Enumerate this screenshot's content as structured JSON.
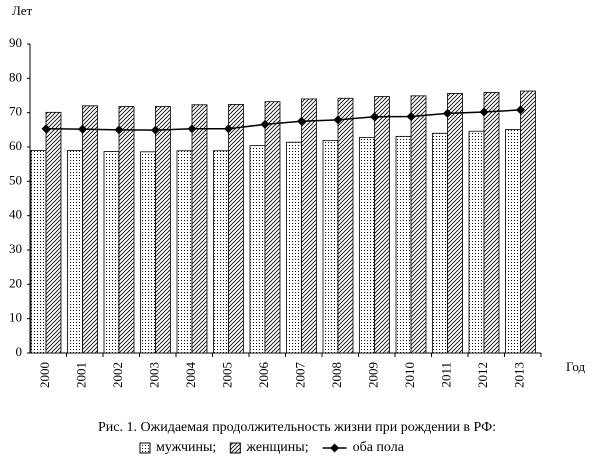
{
  "chart_data": {
    "type": "bar",
    "title": "Рис. 1. Ожидаемая продолжительность жизни при рождении в РФ:",
    "y_label": "Лет",
    "x_label": "Год",
    "categories": [
      "2000",
      "2001",
      "2002",
      "2003",
      "2004",
      "2005",
      "2006",
      "2007",
      "2008",
      "2009",
      "2010",
      "2011",
      "2012",
      "2013"
    ],
    "series": [
      {
        "name": "мужчины;",
        "type": "bar",
        "pattern": "dots",
        "color": "#000000",
        "values": [
          59.0,
          59.0,
          58.7,
          58.6,
          58.9,
          58.9,
          60.4,
          61.4,
          61.9,
          62.8,
          63.1,
          64.0,
          64.6,
          65.1
        ]
      },
      {
        "name": "женщины;",
        "type": "bar",
        "pattern": "hatch",
        "color": "#000000",
        "values": [
          70.1,
          72.0,
          71.8,
          71.8,
          72.3,
          72.4,
          73.2,
          74.0,
          74.2,
          74.7,
          74.9,
          75.6,
          75.9,
          76.3
        ]
      },
      {
        "name": "оба пола",
        "type": "line",
        "marker": "diamond",
        "color": "#000000",
        "values": [
          65.3,
          65.2,
          65.0,
          64.9,
          65.3,
          65.3,
          66.6,
          67.5,
          67.9,
          68.8,
          68.9,
          69.8,
          70.2,
          70.8
        ]
      }
    ],
    "ylim": [
      0,
      90
    ],
    "yticks": [
      0,
      10,
      20,
      30,
      40,
      50,
      60,
      70,
      80,
      90
    ]
  }
}
